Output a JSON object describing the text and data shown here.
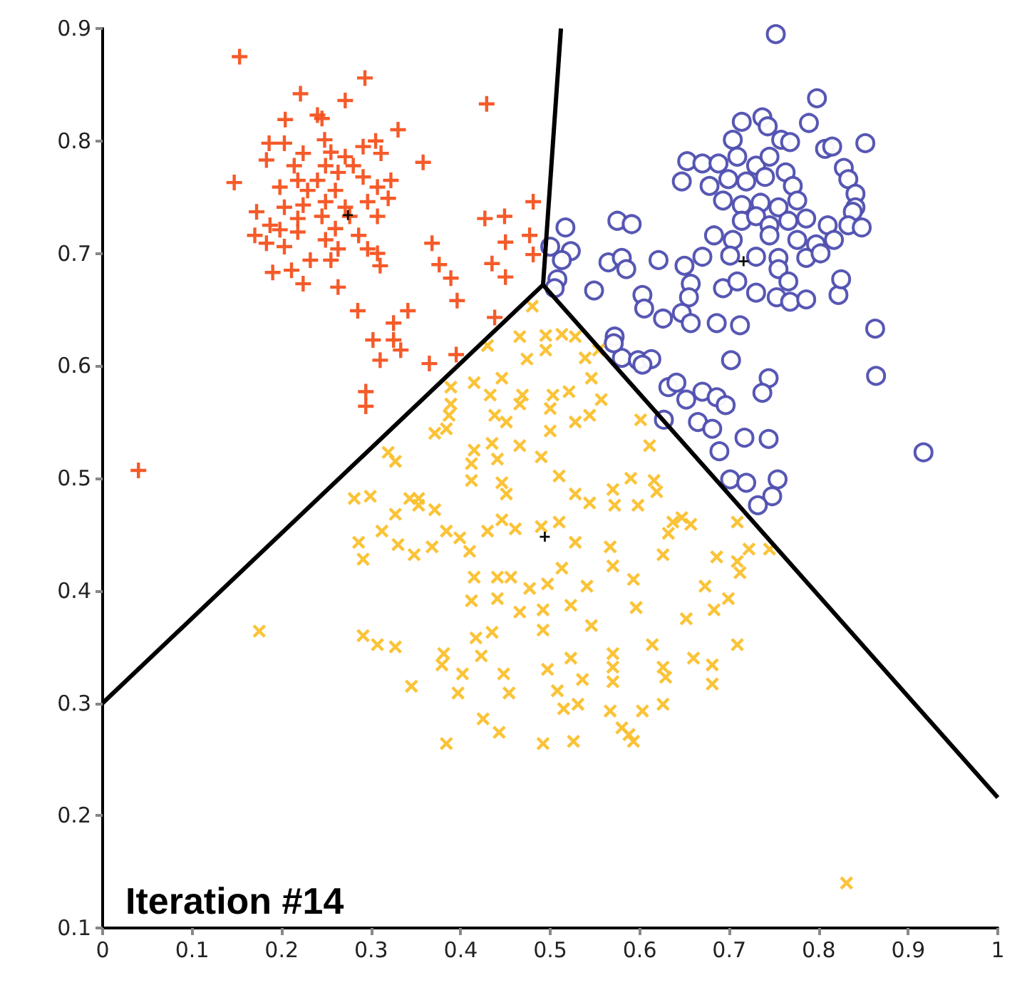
{
  "chart_data": {
    "type": "scatter",
    "annotations": [
      "Iteration #14"
    ],
    "xlim": [
      0,
      1
    ],
    "ylim": [
      0.1,
      0.9
    ],
    "xticks": [
      0,
      0.1,
      0.2,
      0.3,
      0.4,
      0.5,
      0.6,
      0.7,
      0.8,
      0.9,
      1
    ],
    "yticks": [
      0.1,
      0.2,
      0.3,
      0.4,
      0.5,
      0.6,
      0.7,
      0.8,
      0.9
    ],
    "series": [
      {
        "marker": "plus",
        "color": "#f4511e",
        "x": [
          0.153,
          0.293,
          0.221,
          0.271,
          0.429,
          0.204,
          0.24,
          0.245,
          0.33,
          0.186,
          0.203,
          0.248,
          0.255,
          0.291,
          0.305,
          0.311,
          0.224,
          0.358,
          0.183,
          0.214,
          0.249,
          0.271,
          0.28,
          0.147,
          0.218,
          0.24,
          0.263,
          0.291,
          0.322,
          0.198,
          0.229,
          0.26,
          0.307,
          0.319,
          0.172,
          0.203,
          0.224,
          0.249,
          0.271,
          0.296,
          0.187,
          0.218,
          0.245,
          0.276,
          0.307,
          0.17,
          0.198,
          0.218,
          0.26,
          0.286,
          0.183,
          0.203,
          0.249,
          0.296,
          0.481,
          0.427,
          0.449,
          0.368,
          0.477,
          0.45,
          0.263,
          0.307,
          0.31,
          0.232,
          0.211,
          0.255,
          0.19,
          0.224,
          0.263,
          0.376,
          0.389,
          0.435,
          0.45,
          0.481,
          0.396,
          0.285,
          0.341,
          0.325,
          0.302,
          0.325,
          0.333,
          0.31,
          0.365,
          0.395,
          0.438,
          0.294,
          0.294,
          0.04
        ],
        "values": [
          0.875,
          0.856,
          0.842,
          0.836,
          0.833,
          0.819,
          0.823,
          0.82,
          0.81,
          0.798,
          0.798,
          0.801,
          0.79,
          0.795,
          0.8,
          0.789,
          0.789,
          0.781,
          0.783,
          0.778,
          0.778,
          0.786,
          0.778,
          0.763,
          0.765,
          0.765,
          0.772,
          0.768,
          0.765,
          0.759,
          0.756,
          0.756,
          0.759,
          0.749,
          0.737,
          0.741,
          0.743,
          0.746,
          0.741,
          0.746,
          0.725,
          0.731,
          0.733,
          0.733,
          0.733,
          0.716,
          0.721,
          0.719,
          0.722,
          0.716,
          0.709,
          0.706,
          0.712,
          0.704,
          0.746,
          0.731,
          0.733,
          0.709,
          0.716,
          0.71,
          0.704,
          0.7,
          0.689,
          0.694,
          0.685,
          0.694,
          0.683,
          0.673,
          0.67,
          0.69,
          0.678,
          0.691,
          0.679,
          0.699,
          0.658,
          0.649,
          0.649,
          0.638,
          0.623,
          0.623,
          0.614,
          0.605,
          0.602,
          0.61,
          0.643,
          0.577,
          0.564,
          0.507
        ]
      },
      {
        "marker": "circle",
        "color": "#4e4eb0",
        "x": [
          0.752,
          0.798,
          0.789,
          0.714,
          0.737,
          0.743,
          0.704,
          0.758,
          0.768,
          0.807,
          0.815,
          0.852,
          0.653,
          0.67,
          0.688,
          0.709,
          0.73,
          0.745,
          0.647,
          0.678,
          0.699,
          0.719,
          0.74,
          0.763,
          0.771,
          0.828,
          0.833,
          0.693,
          0.714,
          0.735,
          0.755,
          0.776,
          0.841,
          0.841,
          0.838,
          0.683,
          0.714,
          0.73,
          0.745,
          0.766,
          0.786,
          0.81,
          0.833,
          0.848,
          0.704,
          0.745,
          0.776,
          0.797,
          0.817,
          0.517,
          0.575,
          0.591,
          0.5,
          0.523,
          0.513,
          0.565,
          0.58,
          0.585,
          0.621,
          0.65,
          0.67,
          0.701,
          0.73,
          0.755,
          0.786,
          0.802,
          0.508,
          0.505,
          0.549,
          0.603,
          0.605,
          0.657,
          0.655,
          0.693,
          0.709,
          0.73,
          0.753,
          0.768,
          0.786,
          0.822,
          0.825,
          0.626,
          0.647,
          0.657,
          0.686,
          0.712,
          0.755,
          0.766,
          0.572,
          0.58,
          0.598,
          0.613,
          0.603,
          0.702,
          0.863,
          0.632,
          0.641,
          0.652,
          0.67,
          0.686,
          0.696,
          0.744,
          0.737,
          0.627,
          0.665,
          0.681,
          0.717,
          0.744,
          0.689,
          0.864,
          0.917,
          0.701,
          0.719,
          0.754,
          0.748,
          0.732,
          0.571
        ],
        "values": [
          0.895,
          0.838,
          0.816,
          0.817,
          0.821,
          0.813,
          0.801,
          0.801,
          0.799,
          0.793,
          0.795,
          0.798,
          0.782,
          0.78,
          0.78,
          0.786,
          0.778,
          0.786,
          0.764,
          0.76,
          0.766,
          0.764,
          0.768,
          0.772,
          0.76,
          0.776,
          0.766,
          0.747,
          0.743,
          0.745,
          0.741,
          0.747,
          0.753,
          0.741,
          0.737,
          0.716,
          0.729,
          0.733,
          0.725,
          0.729,
          0.731,
          0.725,
          0.725,
          0.723,
          0.712,
          0.716,
          0.712,
          0.708,
          0.712,
          0.723,
          0.729,
          0.726,
          0.706,
          0.702,
          0.694,
          0.692,
          0.696,
          0.686,
          0.694,
          0.689,
          0.697,
          0.698,
          0.697,
          0.696,
          0.696,
          0.7,
          0.677,
          0.669,
          0.667,
          0.663,
          0.651,
          0.673,
          0.661,
          0.669,
          0.675,
          0.665,
          0.661,
          0.657,
          0.659,
          0.663,
          0.677,
          0.642,
          0.647,
          0.638,
          0.638,
          0.636,
          0.686,
          0.675,
          0.626,
          0.607,
          0.605,
          0.606,
          0.601,
          0.605,
          0.633,
          0.581,
          0.585,
          0.57,
          0.577,
          0.572,
          0.565,
          0.589,
          0.576,
          0.552,
          0.55,
          0.544,
          0.536,
          0.535,
          0.524,
          0.591,
          0.523,
          0.499,
          0.496,
          0.499,
          0.484,
          0.476,
          0.62
        ]
      },
      {
        "marker": "cross",
        "color": "#fbc02d",
        "x": [
          0.48,
          0.466,
          0.495,
          0.513,
          0.528,
          0.495,
          0.474,
          0.539,
          0.554,
          0.43,
          0.389,
          0.415,
          0.446,
          0.433,
          0.469,
          0.503,
          0.521,
          0.546,
          0.557,
          0.389,
          0.387,
          0.371,
          0.384,
          0.438,
          0.451,
          0.466,
          0.5,
          0.5,
          0.528,
          0.544,
          0.435,
          0.415,
          0.466,
          0.49,
          0.319,
          0.327,
          0.441,
          0.175,
          0.353,
          0.281,
          0.299,
          0.327,
          0.343,
          0.353,
          0.371,
          0.312,
          0.286,
          0.291,
          0.33,
          0.348,
          0.368,
          0.384,
          0.399,
          0.41,
          0.43,
          0.446,
          0.461,
          0.49,
          0.51,
          0.528,
          0.513,
          0.497,
          0.477,
          0.456,
          0.441,
          0.415,
          0.412,
          0.441,
          0.466,
          0.492,
          0.523,
          0.541,
          0.567,
          0.57,
          0.593,
          0.596,
          0.546,
          0.492,
          0.435,
          0.417,
          0.291,
          0.307,
          0.327,
          0.381,
          0.379,
          0.402,
          0.423,
          0.448,
          0.454,
          0.397,
          0.345,
          0.497,
          0.523,
          0.536,
          0.508,
          0.515,
          0.531,
          0.57,
          0.57,
          0.57,
          0.567,
          0.58,
          0.593,
          0.603,
          0.626,
          0.614,
          0.626,
          0.629,
          0.66,
          0.681,
          0.681,
          0.709,
          0.673,
          0.683,
          0.699,
          0.709,
          0.712,
          0.686,
          0.722,
          0.745,
          0.709,
          0.652,
          0.637,
          0.647,
          0.632,
          0.657,
          0.626,
          0.59,
          0.57,
          0.616,
          0.619,
          0.572,
          0.598,
          0.544,
          0.528,
          0.51,
          0.446,
          0.451,
          0.412,
          0.412,
          0.384,
          0.425,
          0.443,
          0.492,
          0.526,
          0.588,
          0.831,
          0.601,
          0.611
        ],
        "values": [
          0.653,
          0.626,
          0.627,
          0.628,
          0.626,
          0.614,
          0.606,
          0.607,
          0.614,
          0.618,
          0.581,
          0.585,
          0.589,
          0.574,
          0.574,
          0.574,
          0.577,
          0.589,
          0.57,
          0.566,
          0.556,
          0.54,
          0.544,
          0.556,
          0.55,
          0.566,
          0.562,
          0.542,
          0.55,
          0.556,
          0.531,
          0.525,
          0.529,
          0.519,
          0.523,
          0.515,
          0.517,
          0.364,
          0.482,
          0.482,
          0.484,
          0.468,
          0.482,
          0.476,
          0.472,
          0.453,
          0.443,
          0.428,
          0.441,
          0.432,
          0.439,
          0.453,
          0.447,
          0.435,
          0.453,
          0.463,
          0.455,
          0.457,
          0.461,
          0.443,
          0.42,
          0.406,
          0.402,
          0.412,
          0.412,
          0.412,
          0.391,
          0.393,
          0.381,
          0.383,
          0.387,
          0.404,
          0.439,
          0.422,
          0.41,
          0.385,
          0.369,
          0.365,
          0.363,
          0.358,
          0.36,
          0.352,
          0.35,
          0.344,
          0.334,
          0.326,
          0.342,
          0.326,
          0.309,
          0.309,
          0.315,
          0.33,
          0.34,
          0.321,
          0.311,
          0.295,
          0.299,
          0.344,
          0.332,
          0.319,
          0.293,
          0.278,
          0.266,
          0.293,
          0.299,
          0.352,
          0.332,
          0.323,
          0.34,
          0.334,
          0.317,
          0.352,
          0.404,
          0.383,
          0.393,
          0.426,
          0.416,
          0.43,
          0.437,
          0.437,
          0.461,
          0.375,
          0.461,
          0.465,
          0.451,
          0.459,
          0.432,
          0.5,
          0.49,
          0.498,
          0.488,
          0.476,
          0.476,
          0.478,
          0.486,
          0.502,
          0.496,
          0.486,
          0.498,
          0.513,
          0.264,
          0.286,
          0.274,
          0.264,
          0.266,
          0.272,
          0.14,
          0.552,
          0.529
        ]
      },
      {
        "marker": "plus",
        "color": "#000000",
        "x": [
          0.274,
          0.494,
          0.716
        ],
        "values": [
          0.734,
          0.448,
          0.693
        ]
      },
      {
        "type": "line",
        "marker": "none",
        "color": "#000000",
        "x": [
          0,
          0.492
        ],
        "values": [
          0.3,
          0.672
        ]
      },
      {
        "type": "line",
        "marker": "none",
        "color": "#000000",
        "x": [
          0.492,
          1
        ],
        "values": [
          0.672,
          0.216
        ]
      },
      {
        "type": "line",
        "marker": "none",
        "color": "#000000",
        "x": [
          0.492,
          0.512
        ],
        "values": [
          0.672,
          0.9
        ]
      }
    ]
  }
}
